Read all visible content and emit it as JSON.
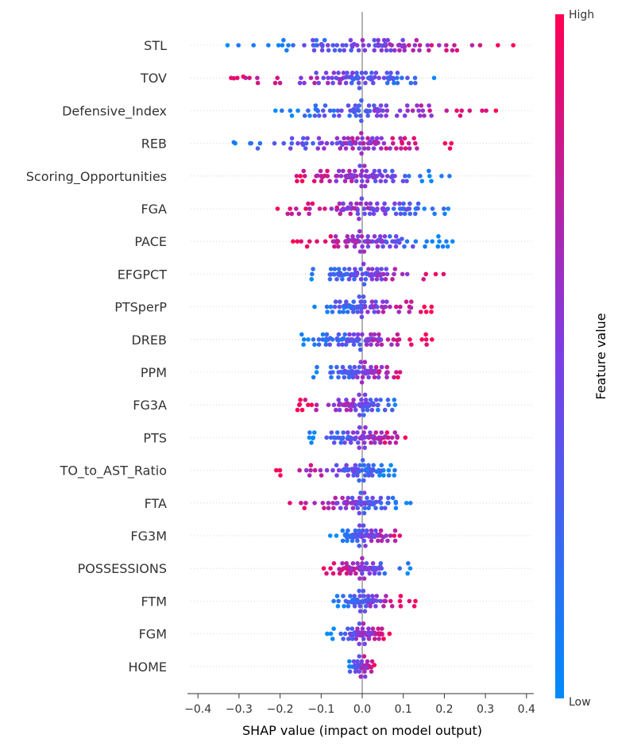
{
  "chart_data": {
    "type": "scatter",
    "subtype": "shap-beeswarm",
    "xlabel": "SHAP value (impact on model output)",
    "xticks": [
      "−0.4",
      "−0.3",
      "−0.2",
      "−0.1",
      "0.0",
      "0.1",
      "0.2",
      "0.3",
      "0.4"
    ],
    "xlim": [
      -0.42,
      0.42
    ],
    "colorbar": {
      "title": "Feature value",
      "high_label": "High",
      "low_label": "Low",
      "low_color": "#008bfb",
      "high_color": "#ff0052"
    },
    "features": [
      {
        "name": "STL",
        "x_range": [
          -0.34,
          0.38
        ],
        "dir": 1
      },
      {
        "name": "TOV",
        "x_range": [
          -0.38,
          0.23
        ],
        "dir": -1
      },
      {
        "name": "Defensive_Index",
        "x_range": [
          -0.22,
          0.35
        ],
        "dir": 1
      },
      {
        "name": "REB",
        "x_range": [
          -0.35,
          0.22
        ],
        "dir": 1
      },
      {
        "name": "Scoring_Opportunities",
        "x_range": [
          -0.18,
          0.22
        ],
        "dir": -1
      },
      {
        "name": "FGA",
        "x_range": [
          -0.21,
          0.24
        ],
        "dir": -1
      },
      {
        "name": "PACE",
        "x_range": [
          -0.17,
          0.22
        ],
        "dir": -1
      },
      {
        "name": "EFGPCT",
        "x_range": [
          -0.14,
          0.21
        ],
        "dir": 1
      },
      {
        "name": "PTSperP",
        "x_range": [
          -0.12,
          0.17
        ],
        "dir": 1
      },
      {
        "name": "DREB",
        "x_range": [
          -0.15,
          0.17
        ],
        "dir": 1
      },
      {
        "name": "PPM",
        "x_range": [
          -0.12,
          0.12
        ],
        "dir": 1
      },
      {
        "name": "FG3A",
        "x_range": [
          -0.16,
          0.11
        ],
        "dir": -1
      },
      {
        "name": "PTS",
        "x_range": [
          -0.13,
          0.12
        ],
        "dir": 1
      },
      {
        "name": "TO_to_AST_Ratio",
        "x_range": [
          -0.22,
          0.09
        ],
        "dir": -1
      },
      {
        "name": "FTA",
        "x_range": [
          -0.18,
          0.12
        ],
        "dir": -1
      },
      {
        "name": "FG3M",
        "x_range": [
          -0.08,
          0.11
        ],
        "dir": 1
      },
      {
        "name": "POSSESSIONS",
        "x_range": [
          -0.1,
          0.12
        ],
        "dir": -1
      },
      {
        "name": "FTM",
        "x_range": [
          -0.07,
          0.13
        ],
        "dir": 1
      },
      {
        "name": "FGM",
        "x_range": [
          -0.09,
          0.07
        ],
        "dir": 1
      },
      {
        "name": "HOME",
        "x_range": [
          -0.04,
          0.03
        ],
        "dir": 1
      }
    ]
  }
}
